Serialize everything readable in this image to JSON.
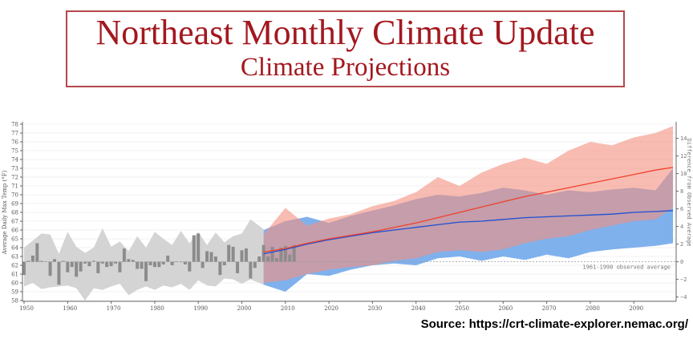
{
  "header": {
    "title": "Northeast Monthly Climate Update",
    "subtitle": "Climate Projections"
  },
  "source": "Source: https://crt-climate-explorer.nemac.org/",
  "chart_data": {
    "type": "bar+area+line",
    "ylabel": "Average Daily Max Temp (°F)",
    "ylabel_right": "Difference from Observed Average",
    "ylim": [
      58,
      78
    ],
    "ylim_right": [
      -4,
      14
    ],
    "xlim": [
      1949,
      2100
    ],
    "x_ticks": [
      1950,
      1960,
      1970,
      1980,
      1990,
      2000,
      2010,
      2020,
      2030,
      2040,
      2050,
      2060,
      2070,
      2080,
      2090
    ],
    "y_ticks": [
      58,
      59,
      60,
      61,
      62,
      63,
      64,
      65,
      66,
      67,
      68,
      69,
      70,
      71,
      72,
      73,
      74,
      75,
      76,
      77,
      78
    ],
    "y_ticks_right": [
      -4,
      -2,
      0,
      2,
      4,
      6,
      8,
      10,
      12,
      14
    ],
    "baseline": 62.4,
    "baseline_label": "1961-1990 observed average",
    "grid": "horizontal",
    "colors": {
      "observed_bar": "#8c8c8c",
      "observed_range": "#d4d4d4",
      "high_emissions": "#f0412c",
      "high_band": "#f4907f",
      "low_emissions": "#1f4fd1",
      "low_band": "#5f9ee8",
      "title": "#a3181f"
    },
    "observed": {
      "start_year": 1950,
      "anomalies": [
        -1.5,
        0.1,
        0.7,
        2.1,
        0.1,
        0.05,
        -1.6,
        0.3,
        -2.6,
        0.1,
        -1.2,
        -0.6,
        -1.7,
        -1.1,
        -0.2,
        -0.5,
        0.1,
        -1.3,
        -0.2,
        -0.6,
        -0.5,
        -0.2,
        -1.2,
        1.5,
        0.3,
        0.2,
        -0.8,
        -0.8,
        -2.2,
        -0.4,
        -0.6,
        -0.6,
        -0.3,
        0.7,
        -0.4,
        0.05,
        -0.05,
        -0.3,
        -1.1,
        3.0,
        3.2,
        -0.7,
        1.2,
        1.1,
        0.6,
        -1.5,
        -0.4,
        1.9,
        1.7,
        -1.3,
        1.3,
        1.5,
        -1.9,
        -0.7,
        0.6,
        1.9,
        0.6,
        1.7,
        0.4,
        1.6,
        1.8,
        0.8,
        1.9
      ]
    },
    "observed_range": {
      "years": [
        1950,
        1952,
        1954,
        1956,
        1958,
        1960,
        1962,
        1964,
        1966,
        1968,
        1970,
        1972,
        1974,
        1976,
        1978,
        1980,
        1982,
        1984,
        1986,
        1988,
        1990,
        1992,
        1994,
        1996,
        1998,
        2000,
        2002,
        2005
      ],
      "upper": [
        64.0,
        64.8,
        65.6,
        65.5,
        63.3,
        65.8,
        64.1,
        63.4,
        64.0,
        66.2,
        64.1,
        64.7,
        63.6,
        65.3,
        64.0,
        65.8,
        65.0,
        64.3,
        65.9,
        64.5,
        65.8,
        64.3,
        65.7,
        64.6,
        65.3,
        65.6,
        67.2,
        66.1
      ],
      "lower": [
        59.6,
        60.0,
        59.3,
        59.5,
        59.6,
        59.7,
        59.4,
        58.0,
        59.4,
        59.2,
        59.6,
        59.9,
        58.6,
        59.2,
        59.6,
        59.2,
        59.7,
        59.5,
        59.9,
        59.2,
        60.3,
        59.7,
        59.6,
        60.5,
        60.4,
        59.9,
        60.4,
        59.8
      ]
    },
    "projections": {
      "years": [
        2005,
        2010,
        2015,
        2020,
        2025,
        2030,
        2035,
        2040,
        2045,
        2050,
        2055,
        2060,
        2065,
        2070,
        2075,
        2080,
        2085,
        2090,
        2095,
        2099
      ],
      "high": {
        "mean": [
          63.5,
          63.9,
          64.5,
          65.0,
          65.4,
          65.8,
          66.3,
          66.8,
          67.4,
          68.0,
          68.6,
          69.2,
          69.8,
          70.3,
          70.8,
          71.3,
          71.8,
          72.3,
          72.8,
          73.1
        ],
        "upper": [
          65.5,
          68.5,
          66.5,
          67.3,
          67.8,
          68.7,
          69.3,
          70.3,
          72.0,
          71.0,
          72.5,
          73.5,
          74.2,
          73.5,
          75.0,
          76.0,
          75.6,
          76.5,
          77.0,
          77.8
        ],
        "lower": [
          60.0,
          60.3,
          61.0,
          61.5,
          61.8,
          62.0,
          62.5,
          62.8,
          63.5,
          63.7,
          63.5,
          63.8,
          64.5,
          65.0,
          65.3,
          66.0,
          66.5,
          67.0,
          67.2,
          68.5
        ]
      },
      "low": {
        "mean": [
          63.3,
          63.8,
          64.4,
          64.9,
          65.3,
          65.7,
          66.0,
          66.3,
          66.6,
          66.9,
          67.0,
          67.2,
          67.4,
          67.5,
          67.6,
          67.7,
          67.8,
          68.0,
          68.1,
          68.2
        ],
        "upper": [
          66.0,
          67.0,
          67.5,
          66.8,
          67.6,
          68.2,
          68.8,
          69.5,
          70.0,
          69.8,
          70.2,
          70.8,
          70.5,
          70.0,
          70.5,
          70.3,
          70.6,
          70.8,
          70.5,
          73.0
        ],
        "lower": [
          59.8,
          59.0,
          61.0,
          60.8,
          61.5,
          62.0,
          62.2,
          62.0,
          62.8,
          63.0,
          62.5,
          63.0,
          62.6,
          63.2,
          62.8,
          63.5,
          63.8,
          64.0,
          64.2,
          64.5
        ]
      }
    }
  }
}
